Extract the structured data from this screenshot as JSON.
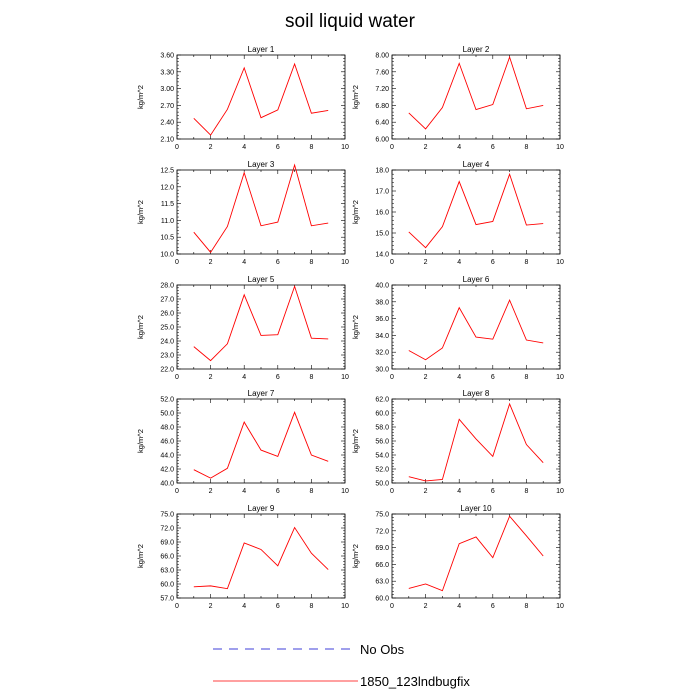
{
  "title": "soil liquid water",
  "colors": {
    "model": "#ff0000",
    "obs": "#0000cc"
  },
  "legend": [
    {
      "label": "No Obs",
      "style": "dashed",
      "color": "#0000cc"
    },
    {
      "label": "1850_123lndbugfix",
      "style": "solid",
      "color": "#ff0000"
    }
  ],
  "chart_data": [
    {
      "type": "line",
      "title": "Layer 1",
      "ylabel": "kg/m^2",
      "xlim": [
        0,
        10
      ],
      "ylim": [
        2.1,
        3.6
      ],
      "xticks": [
        "0",
        "2",
        "4",
        "6",
        "8",
        "10"
      ],
      "yticks": [
        "2.10",
        "2.40",
        "2.70",
        "3.00",
        "3.30",
        "3.60"
      ],
      "series": [
        {
          "name": "1850_123lndbugfix",
          "x": [
            1,
            2,
            3,
            4,
            5,
            6,
            7,
            8,
            9
          ],
          "y": [
            2.47,
            2.17,
            2.63,
            3.37,
            2.48,
            2.62,
            3.44,
            2.56,
            2.61
          ]
        }
      ]
    },
    {
      "type": "line",
      "title": "Layer 2",
      "ylabel": "kg/m^2",
      "xlim": [
        0,
        10
      ],
      "ylim": [
        6.0,
        8.0
      ],
      "xticks": [
        "0",
        "2",
        "4",
        "6",
        "8",
        "10"
      ],
      "yticks": [
        "6.00",
        "6.40",
        "6.80",
        "7.20",
        "7.60",
        "8.00"
      ],
      "series": [
        {
          "name": "1850_123lndbugfix",
          "x": [
            1,
            2,
            3,
            4,
            5,
            6,
            7,
            8,
            9
          ],
          "y": [
            6.62,
            6.24,
            6.75,
            7.8,
            6.7,
            6.82,
            7.95,
            6.72,
            6.8
          ]
        }
      ]
    },
    {
      "type": "line",
      "title": "Layer 3",
      "ylabel": "kg/m^2",
      "xlim": [
        0,
        10
      ],
      "ylim": [
        10.0,
        12.5
      ],
      "xticks": [
        "0",
        "2",
        "4",
        "6",
        "8",
        "10"
      ],
      "yticks": [
        "10.0",
        "10.5",
        "11.0",
        "11.5",
        "12.0",
        "12.5"
      ],
      "series": [
        {
          "name": "1850_123lndbugfix",
          "x": [
            1,
            2,
            3,
            4,
            5,
            6,
            7,
            8,
            9
          ],
          "y": [
            10.65,
            10.05,
            10.82,
            12.42,
            10.84,
            10.95,
            12.65,
            10.84,
            10.92
          ]
        }
      ]
    },
    {
      "type": "line",
      "title": "Layer 4",
      "ylabel": "kg/m^2",
      "xlim": [
        0,
        10
      ],
      "ylim": [
        14.0,
        18.0
      ],
      "xticks": [
        "0",
        "2",
        "4",
        "6",
        "8",
        "10"
      ],
      "yticks": [
        "14.0",
        "15.0",
        "16.0",
        "17.0",
        "18.0"
      ],
      "series": [
        {
          "name": "1850_123lndbugfix",
          "x": [
            1,
            2,
            3,
            4,
            5,
            6,
            7,
            8,
            9
          ],
          "y": [
            15.05,
            14.3,
            15.3,
            17.45,
            15.4,
            15.55,
            17.8,
            15.38,
            15.45
          ]
        }
      ]
    },
    {
      "type": "line",
      "title": "Layer 5",
      "ylabel": "kg/m^2",
      "xlim": [
        0,
        10
      ],
      "ylim": [
        22.0,
        28.0
      ],
      "xticks": [
        "0",
        "2",
        "4",
        "6",
        "8",
        "10"
      ],
      "yticks": [
        "22.0",
        "23.0",
        "24.0",
        "25.0",
        "26.0",
        "27.0",
        "28.0"
      ],
      "series": [
        {
          "name": "1850_123lndbugfix",
          "x": [
            1,
            2,
            3,
            4,
            5,
            6,
            7,
            8,
            9
          ],
          "y": [
            23.6,
            22.6,
            23.8,
            27.3,
            24.4,
            24.45,
            27.9,
            24.2,
            24.15
          ]
        }
      ]
    },
    {
      "type": "line",
      "title": "Layer 6",
      "ylabel": "kg/m^2",
      "xlim": [
        0,
        10
      ],
      "ylim": [
        30.0,
        40.0
      ],
      "xticks": [
        "0",
        "2",
        "4",
        "6",
        "8",
        "10"
      ],
      "yticks": [
        "30.0",
        "32.0",
        "34.0",
        "36.0",
        "38.0",
        "40.0"
      ],
      "series": [
        {
          "name": "1850_123lndbugfix",
          "x": [
            1,
            2,
            3,
            4,
            5,
            6,
            7,
            8,
            9
          ],
          "y": [
            32.2,
            31.1,
            32.5,
            37.3,
            33.8,
            33.55,
            38.2,
            33.45,
            33.1
          ]
        }
      ]
    },
    {
      "type": "line",
      "title": "Layer 7",
      "ylabel": "kg/m^2",
      "xlim": [
        0,
        10
      ],
      "ylim": [
        40.0,
        52.0
      ],
      "xticks": [
        "0",
        "2",
        "4",
        "6",
        "8",
        "10"
      ],
      "yticks": [
        "40.0",
        "42.0",
        "44.0",
        "46.0",
        "48.0",
        "50.0",
        "52.0"
      ],
      "series": [
        {
          "name": "1850_123lndbugfix",
          "x": [
            1,
            2,
            3,
            4,
            5,
            6,
            7,
            8,
            9
          ],
          "y": [
            41.9,
            40.7,
            42.1,
            48.7,
            44.7,
            43.8,
            50.1,
            44.0,
            43.1
          ]
        }
      ]
    },
    {
      "type": "line",
      "title": "Layer 8",
      "ylabel": "kg/m^2",
      "xlim": [
        0,
        10
      ],
      "ylim": [
        50.0,
        62.0
      ],
      "xticks": [
        "0",
        "2",
        "4",
        "6",
        "8",
        "10"
      ],
      "yticks": [
        "50.0",
        "52.0",
        "54.0",
        "56.0",
        "58.0",
        "60.0",
        "62.0"
      ],
      "series": [
        {
          "name": "1850_123lndbugfix",
          "x": [
            1,
            2,
            3,
            4,
            5,
            6,
            7,
            8,
            9
          ],
          "y": [
            50.9,
            50.3,
            50.5,
            59.1,
            56.3,
            53.8,
            61.3,
            55.5,
            52.9
          ]
        }
      ]
    },
    {
      "type": "line",
      "title": "Layer 9",
      "ylabel": "kg/m^2",
      "xlim": [
        0,
        10
      ],
      "ylim": [
        57.0,
        75.0
      ],
      "xticks": [
        "0",
        "2",
        "4",
        "6",
        "8",
        "10"
      ],
      "yticks": [
        "57.0",
        "60.0",
        "63.0",
        "66.0",
        "69.0",
        "72.0",
        "75.0"
      ],
      "series": [
        {
          "name": "1850_123lndbugfix",
          "x": [
            1,
            2,
            3,
            4,
            5,
            6,
            7,
            8,
            9
          ],
          "y": [
            59.4,
            59.6,
            59.0,
            68.8,
            67.4,
            63.9,
            72.1,
            66.6,
            63.1
          ]
        }
      ]
    },
    {
      "type": "line",
      "title": "Layer 10",
      "ylabel": "kg/m^2",
      "xlim": [
        0,
        10
      ],
      "ylim": [
        60.0,
        75.0
      ],
      "xticks": [
        "0",
        "2",
        "4",
        "6",
        "8",
        "10"
      ],
      "yticks": [
        "60.0",
        "63.0",
        "66.0",
        "69.0",
        "72.0",
        "75.0"
      ],
      "series": [
        {
          "name": "1850_123lndbugfix",
          "x": [
            1,
            2,
            3,
            4,
            5,
            6,
            7,
            8,
            9
          ],
          "y": [
            61.7,
            62.5,
            61.3,
            69.7,
            70.9,
            67.2,
            74.6,
            71.1,
            67.5
          ]
        }
      ]
    }
  ]
}
